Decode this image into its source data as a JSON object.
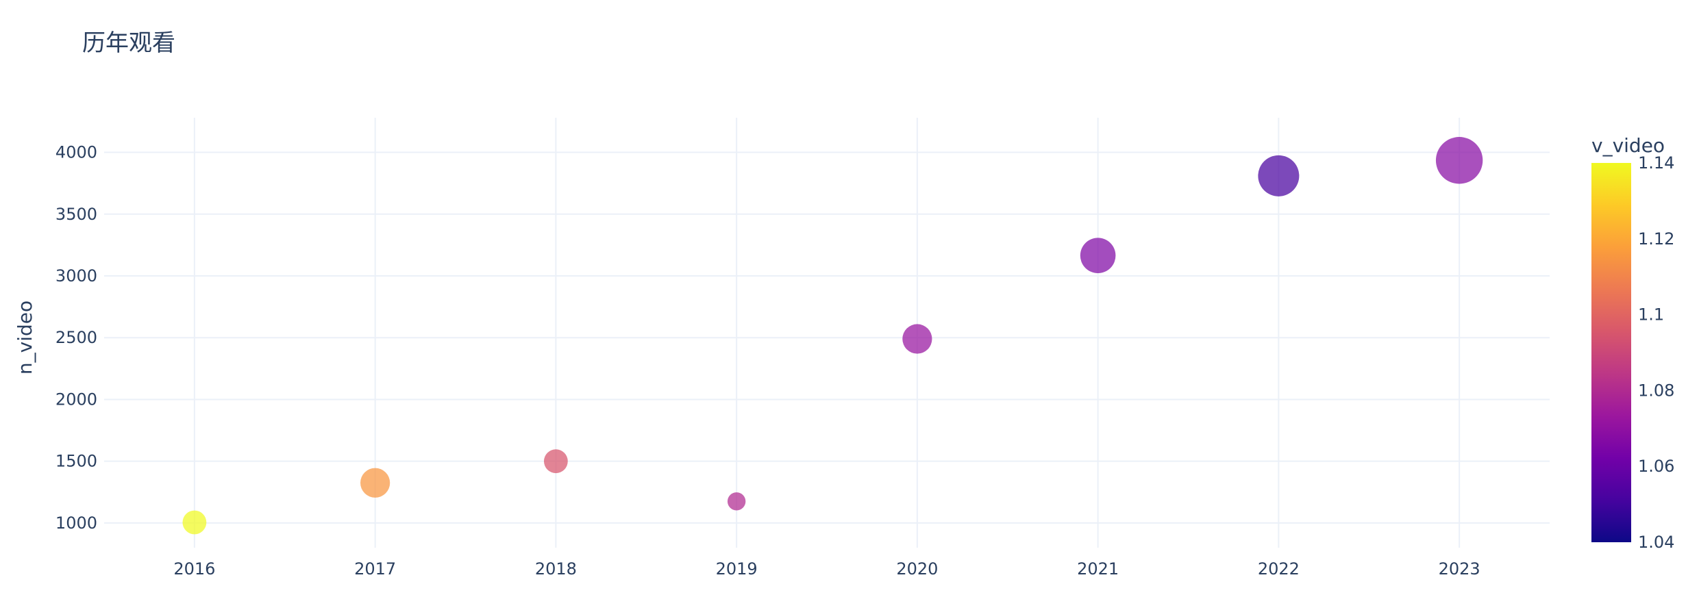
{
  "chart_data": {
    "type": "scatter",
    "title": "历年观看",
    "xlabel": "",
    "ylabel": "n_video",
    "colorbar_title": "v_video",
    "x": [
      2016,
      2017,
      2018,
      2019,
      2020,
      2021,
      2022,
      2023
    ],
    "y": [
      1005,
      1325,
      1500,
      1175,
      2490,
      3165,
      3810,
      3935
    ],
    "color_values": [
      1.14,
      1.115,
      1.095,
      1.08,
      1.072,
      1.066,
      1.052,
      1.068
    ],
    "size_rank": [
      2,
      3,
      2,
      1,
      3,
      4,
      5,
      6
    ],
    "xlim": [
      2015.5,
      2023.5
    ],
    "ylim": [
      800,
      4280
    ],
    "x_ticks": [
      "2016",
      "2017",
      "2018",
      "2019",
      "2020",
      "2021",
      "2022",
      "2023"
    ],
    "y_ticks": [
      "1000",
      "1500",
      "2000",
      "2500",
      "3000",
      "3500",
      "4000"
    ],
    "color_range": [
      1.04,
      1.14
    ],
    "colorbar_ticks": [
      "1.04",
      "1.06",
      "1.08",
      "1.1",
      "1.12",
      "1.14"
    ],
    "colorscale": [
      "#0d0887",
      "#46039f",
      "#7201a8",
      "#9c179e",
      "#bd3786",
      "#d8576b",
      "#ed7953",
      "#fb9f3a",
      "#fdca26",
      "#f0f921"
    ],
    "grid": true,
    "legend": "colorbar-right"
  }
}
